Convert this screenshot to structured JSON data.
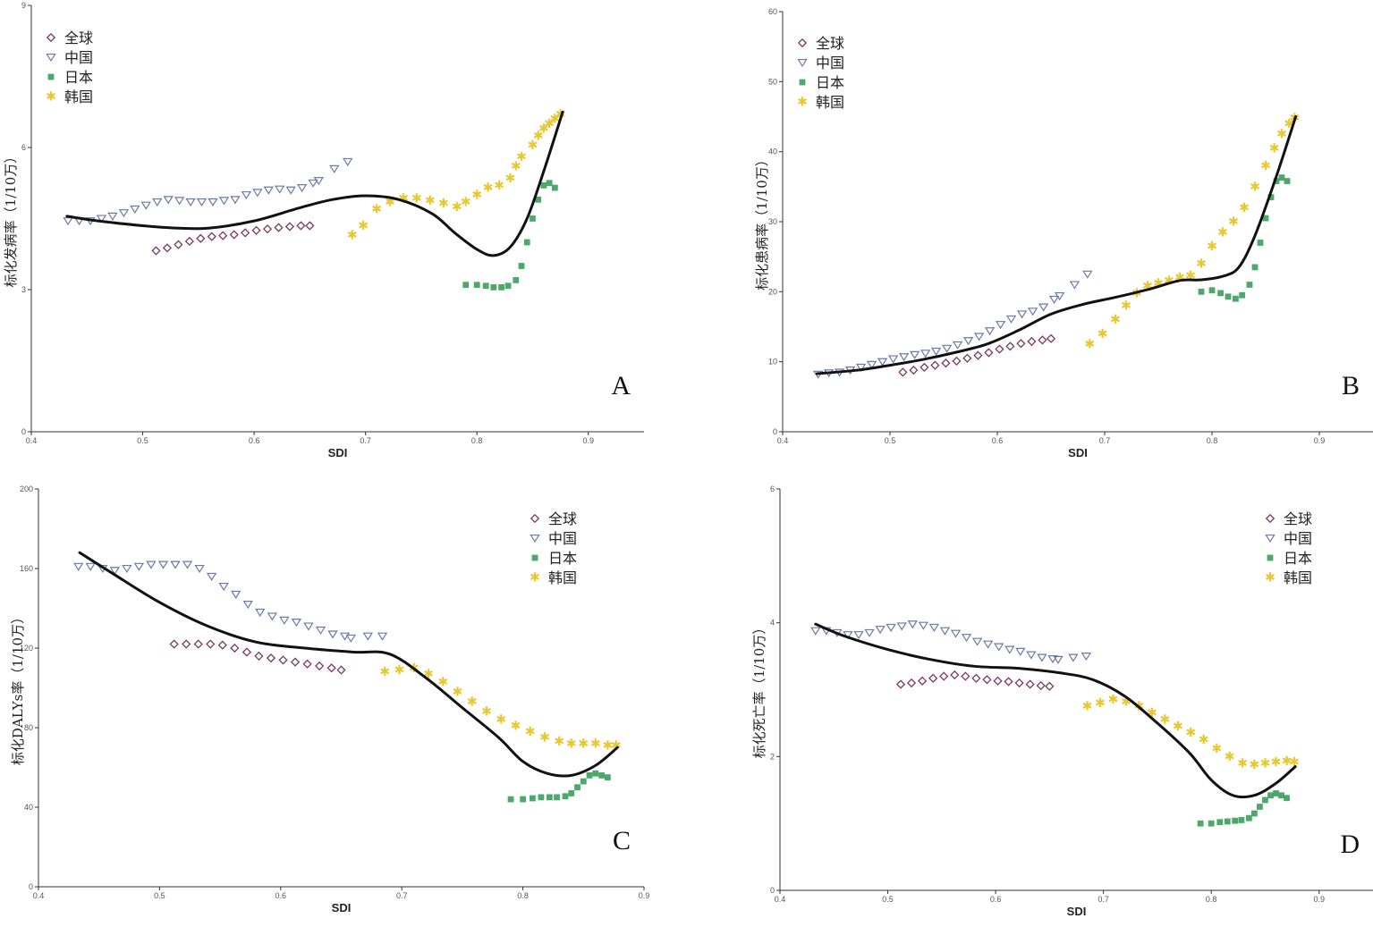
{
  "colors": {
    "global": "#7a3a5a",
    "china": "#6a7aa8",
    "japan": "#3aa05a",
    "korea": "#e8c830",
    "fit": "#111111"
  },
  "legend": [
    {
      "key": "global",
      "label": "全球",
      "marker": "diamond"
    },
    {
      "key": "china",
      "label": "中国",
      "marker": "triangle-down"
    },
    {
      "key": "japan",
      "label": "日本",
      "marker": "square"
    },
    {
      "key": "korea",
      "label": "韩国",
      "marker": "star"
    }
  ],
  "chart_data": [
    {
      "type": "scatter",
      "panel_label": "A",
      "xlabel": "SDI",
      "ylabel": "标化发病率（1/10万）",
      "xlim": [
        0.4,
        0.95
      ],
      "ylim": [
        0,
        9
      ],
      "xticks": [
        "0.4",
        "0.5",
        "0.6",
        "0.7",
        "0.8",
        "0.9"
      ],
      "yticks": [
        "0",
        "3",
        "6",
        "9"
      ],
      "legend_position": "top-left",
      "series": [
        {
          "name": "全球",
          "key": "global",
          "marker": "diamond",
          "x": [
            0.512,
            0.522,
            0.532,
            0.542,
            0.552,
            0.562,
            0.572,
            0.582,
            0.592,
            0.602,
            0.612,
            0.622,
            0.632,
            0.642,
            0.65
          ],
          "y": [
            3.82,
            3.88,
            3.95,
            4.02,
            4.08,
            4.12,
            4.14,
            4.16,
            4.2,
            4.25,
            4.28,
            4.31,
            4.33,
            4.35,
            4.35
          ]
        },
        {
          "name": "中国",
          "key": "china",
          "marker": "triangle-down",
          "x": [
            0.433,
            0.443,
            0.453,
            0.463,
            0.473,
            0.483,
            0.493,
            0.503,
            0.513,
            0.523,
            0.533,
            0.543,
            0.553,
            0.563,
            0.573,
            0.583,
            0.593,
            0.603,
            0.613,
            0.623,
            0.633,
            0.643,
            0.653,
            0.658,
            0.672,
            0.684
          ],
          "y": [
            4.45,
            4.45,
            4.45,
            4.5,
            4.55,
            4.62,
            4.7,
            4.78,
            4.85,
            4.9,
            4.88,
            4.85,
            4.85,
            4.85,
            4.88,
            4.9,
            5.0,
            5.05,
            5.1,
            5.12,
            5.1,
            5.15,
            5.25,
            5.3,
            5.55,
            5.7
          ]
        },
        {
          "name": "日本",
          "key": "japan",
          "marker": "square",
          "x": [
            0.79,
            0.8,
            0.808,
            0.815,
            0.822,
            0.828,
            0.835,
            0.84,
            0.845,
            0.85,
            0.855,
            0.86,
            0.865,
            0.87
          ],
          "y": [
            3.1,
            3.1,
            3.08,
            3.05,
            3.05,
            3.08,
            3.2,
            3.5,
            4.0,
            4.5,
            4.9,
            5.2,
            5.25,
            5.15
          ]
        },
        {
          "name": "韩国",
          "key": "korea",
          "marker": "star",
          "x": [
            0.688,
            0.698,
            0.71,
            0.722,
            0.734,
            0.746,
            0.758,
            0.77,
            0.782,
            0.79,
            0.8,
            0.81,
            0.82,
            0.83,
            0.835,
            0.84,
            0.85,
            0.855,
            0.86,
            0.865,
            0.87,
            0.875
          ],
          "y": [
            4.15,
            4.35,
            4.7,
            4.85,
            4.92,
            4.92,
            4.88,
            4.82,
            4.75,
            4.85,
            5.0,
            5.15,
            5.2,
            5.35,
            5.6,
            5.8,
            6.05,
            6.25,
            6.4,
            6.5,
            6.6,
            6.7
          ]
        }
      ],
      "fit": {
        "x": [
          0.432,
          0.46,
          0.5,
          0.53,
          0.56,
          0.6,
          0.64,
          0.67,
          0.7,
          0.73,
          0.76,
          0.78,
          0.8,
          0.815,
          0.83,
          0.845,
          0.86,
          0.877
        ],
        "y": [
          4.55,
          4.45,
          4.35,
          4.3,
          4.3,
          4.45,
          4.72,
          4.9,
          4.98,
          4.9,
          4.6,
          4.2,
          3.85,
          3.72,
          3.9,
          4.5,
          5.5,
          6.75
        ]
      }
    },
    {
      "type": "scatter",
      "panel_label": "B",
      "xlabel": "SDI",
      "ylabel": "标化患病率（1/10万）",
      "xlim": [
        0.4,
        0.95
      ],
      "ylim": [
        0,
        60
      ],
      "xticks": [
        "0.4",
        "0.5",
        "0.6",
        "0.7",
        "0.8",
        "0.9"
      ],
      "yticks": [
        "0",
        "10",
        "20",
        "30",
        "40",
        "50",
        "60"
      ],
      "legend_position": "top-left",
      "series": [
        {
          "name": "全球",
          "key": "global",
          "marker": "diamond",
          "x": [
            0.512,
            0.522,
            0.532,
            0.542,
            0.552,
            0.562,
            0.572,
            0.582,
            0.592,
            0.602,
            0.612,
            0.622,
            0.632,
            0.642,
            0.65
          ],
          "y": [
            8.5,
            8.8,
            9.2,
            9.5,
            9.8,
            10.1,
            10.5,
            10.9,
            11.3,
            11.8,
            12.2,
            12.6,
            12.9,
            13.1,
            13.3
          ]
        },
        {
          "name": "中国",
          "key": "china",
          "marker": "triangle-down",
          "x": [
            0.433,
            0.443,
            0.453,
            0.463,
            0.473,
            0.483,
            0.493,
            0.503,
            0.513,
            0.523,
            0.533,
            0.543,
            0.553,
            0.563,
            0.573,
            0.583,
            0.593,
            0.603,
            0.613,
            0.623,
            0.633,
            0.643,
            0.653,
            0.658,
            0.672,
            0.684
          ],
          "y": [
            8.2,
            8.4,
            8.5,
            8.8,
            9.2,
            9.6,
            10.0,
            10.4,
            10.7,
            11.0,
            11.2,
            11.5,
            11.9,
            12.4,
            13.0,
            13.6,
            14.4,
            15.3,
            16.1,
            16.8,
            17.2,
            17.8,
            18.9,
            19.4,
            21.0,
            22.5
          ]
        },
        {
          "name": "日本",
          "key": "japan",
          "marker": "square",
          "x": [
            0.79,
            0.8,
            0.808,
            0.815,
            0.822,
            0.828,
            0.835,
            0.84,
            0.845,
            0.85,
            0.855,
            0.86,
            0.865,
            0.87
          ],
          "y": [
            20.0,
            20.2,
            19.8,
            19.3,
            19.0,
            19.5,
            21.0,
            23.5,
            27.0,
            30.5,
            33.5,
            35.8,
            36.3,
            35.8
          ]
        },
        {
          "name": "韩国",
          "key": "korea",
          "marker": "star",
          "x": [
            0.686,
            0.698,
            0.71,
            0.72,
            0.73,
            0.74,
            0.75,
            0.76,
            0.77,
            0.78,
            0.79,
            0.8,
            0.81,
            0.82,
            0.83,
            0.84,
            0.85,
            0.858,
            0.865,
            0.872,
            0.877
          ],
          "y": [
            12.5,
            14.0,
            16.0,
            18.0,
            19.8,
            20.8,
            21.2,
            21.6,
            22.0,
            22.3,
            24.0,
            26.5,
            28.5,
            30.0,
            32.0,
            35.0,
            38.0,
            40.5,
            42.5,
            44.0,
            44.8
          ]
        }
      ],
      "fit": {
        "x": [
          0.432,
          0.47,
          0.5,
          0.53,
          0.56,
          0.59,
          0.62,
          0.65,
          0.68,
          0.71,
          0.74,
          0.77,
          0.79,
          0.81,
          0.825,
          0.84,
          0.86,
          0.878
        ],
        "y": [
          8.3,
          8.8,
          9.5,
          10.3,
          11.3,
          12.5,
          14.5,
          16.8,
          18.2,
          19.2,
          20.3,
          21.6,
          21.7,
          22.2,
          23.5,
          28.0,
          36.5,
          45.0
        ]
      }
    },
    {
      "type": "scatter",
      "panel_label": "C",
      "xlabel": "SDI",
      "ylabel": "标化DALYs率（1/10万）",
      "xlim": [
        0.4,
        0.9
      ],
      "ylim": [
        0,
        200
      ],
      "xticks": [
        "0.4",
        "0.5",
        "0.6",
        "0.7",
        "0.8",
        "0.9"
      ],
      "yticks": [
        "0",
        "40",
        "80",
        "120",
        "160",
        "200"
      ],
      "legend_position": "top-right",
      "series": [
        {
          "name": "全球",
          "key": "global",
          "marker": "diamond",
          "x": [
            0.512,
            0.522,
            0.532,
            0.542,
            0.552,
            0.562,
            0.572,
            0.582,
            0.592,
            0.602,
            0.612,
            0.622,
            0.632,
            0.642,
            0.65
          ],
          "y": [
            122,
            122,
            122,
            122,
            121.5,
            120,
            118,
            116,
            115,
            114,
            113,
            112,
            111,
            110,
            109
          ]
        },
        {
          "name": "中国",
          "key": "china",
          "marker": "triangle-down",
          "x": [
            0.433,
            0.443,
            0.453,
            0.463,
            0.473,
            0.483,
            0.493,
            0.503,
            0.513,
            0.523,
            0.533,
            0.543,
            0.553,
            0.563,
            0.573,
            0.583,
            0.593,
            0.603,
            0.613,
            0.623,
            0.633,
            0.643,
            0.653,
            0.658,
            0.672,
            0.684
          ],
          "y": [
            161,
            161,
            160,
            159,
            160,
            161,
            162,
            162,
            162,
            162,
            160,
            156,
            151,
            147,
            142,
            138,
            136,
            134,
            133,
            131,
            129,
            127,
            126,
            125,
            126,
            126
          ]
        },
        {
          "name": "日本",
          "key": "japan",
          "marker": "square",
          "x": [
            0.79,
            0.8,
            0.808,
            0.815,
            0.822,
            0.828,
            0.835,
            0.84,
            0.845,
            0.85,
            0.855,
            0.86,
            0.865,
            0.87
          ],
          "y": [
            44,
            44,
            44.5,
            45,
            45,
            45,
            45.5,
            47,
            50,
            53,
            56,
            57,
            56,
            55
          ]
        },
        {
          "name": "韩国",
          "key": "korea",
          "marker": "star",
          "x": [
            0.686,
            0.698,
            0.71,
            0.722,
            0.734,
            0.746,
            0.758,
            0.77,
            0.782,
            0.794,
            0.806,
            0.818,
            0.83,
            0.84,
            0.85,
            0.86,
            0.87,
            0.877
          ],
          "y": [
            108,
            109,
            110,
            107,
            103,
            98,
            93,
            88,
            84,
            81,
            78,
            75,
            73,
            72,
            72,
            72,
            71,
            71
          ]
        }
      ],
      "fit": {
        "x": [
          0.434,
          0.46,
          0.5,
          0.54,
          0.58,
          0.62,
          0.66,
          0.69,
          0.72,
          0.75,
          0.78,
          0.8,
          0.82,
          0.84,
          0.86,
          0.878
        ],
        "y": [
          168,
          158,
          143,
          131,
          123,
          120,
          118,
          117,
          105,
          90,
          75,
          63,
          57,
          56,
          61,
          70
        ]
      }
    },
    {
      "type": "scatter",
      "panel_label": "D",
      "xlabel": "SDI",
      "ylabel": "标化死亡率（1/10万）",
      "xlim": [
        0.4,
        0.95
      ],
      "ylim": [
        0,
        6
      ],
      "xticks": [
        "0.4",
        "0.5",
        "0.6",
        "0.7",
        "0.8",
        "0.9"
      ],
      "yticks": [
        "0",
        "2",
        "4",
        "6"
      ],
      "legend_position": "top-right",
      "series": [
        {
          "name": "全球",
          "key": "global",
          "marker": "diamond",
          "x": [
            0.512,
            0.522,
            0.532,
            0.542,
            0.552,
            0.562,
            0.572,
            0.582,
            0.592,
            0.602,
            0.612,
            0.622,
            0.632,
            0.642,
            0.65
          ],
          "y": [
            3.08,
            3.1,
            3.13,
            3.17,
            3.2,
            3.22,
            3.2,
            3.17,
            3.15,
            3.13,
            3.12,
            3.1,
            3.08,
            3.06,
            3.05
          ]
        },
        {
          "name": "中国",
          "key": "china",
          "marker": "triangle-down",
          "x": [
            0.433,
            0.443,
            0.453,
            0.463,
            0.473,
            0.483,
            0.493,
            0.503,
            0.513,
            0.523,
            0.533,
            0.543,
            0.553,
            0.563,
            0.573,
            0.583,
            0.593,
            0.603,
            0.613,
            0.623,
            0.633,
            0.643,
            0.653,
            0.658,
            0.672,
            0.684
          ],
          "y": [
            3.88,
            3.88,
            3.85,
            3.82,
            3.82,
            3.85,
            3.9,
            3.93,
            3.95,
            3.98,
            3.96,
            3.93,
            3.88,
            3.84,
            3.78,
            3.72,
            3.68,
            3.64,
            3.6,
            3.57,
            3.52,
            3.48,
            3.46,
            3.45,
            3.48,
            3.5
          ]
        },
        {
          "name": "日本",
          "key": "japan",
          "marker": "square",
          "x": [
            0.79,
            0.8,
            0.808,
            0.815,
            0.822,
            0.828,
            0.835,
            0.84,
            0.845,
            0.85,
            0.855,
            0.86,
            0.865,
            0.87
          ],
          "y": [
            1.0,
            1.0,
            1.02,
            1.03,
            1.04,
            1.05,
            1.08,
            1.15,
            1.25,
            1.35,
            1.42,
            1.45,
            1.42,
            1.38
          ]
        },
        {
          "name": "韩国",
          "key": "korea",
          "marker": "star",
          "x": [
            0.685,
            0.697,
            0.709,
            0.721,
            0.733,
            0.745,
            0.757,
            0.769,
            0.781,
            0.793,
            0.805,
            0.817,
            0.829,
            0.84,
            0.85,
            0.86,
            0.87,
            0.877
          ],
          "y": [
            2.75,
            2.8,
            2.85,
            2.82,
            2.75,
            2.65,
            2.55,
            2.45,
            2.36,
            2.25,
            2.12,
            2.0,
            1.9,
            1.88,
            1.9,
            1.92,
            1.93,
            1.92
          ]
        }
      ],
      "fit": {
        "x": [
          0.433,
          0.46,
          0.5,
          0.54,
          0.58,
          0.62,
          0.66,
          0.69,
          0.72,
          0.75,
          0.78,
          0.8,
          0.82,
          0.84,
          0.86,
          0.878
        ],
        "y": [
          3.98,
          3.8,
          3.6,
          3.45,
          3.35,
          3.32,
          3.25,
          3.15,
          2.9,
          2.5,
          2.05,
          1.65,
          1.42,
          1.42,
          1.6,
          1.85
        ]
      }
    }
  ]
}
